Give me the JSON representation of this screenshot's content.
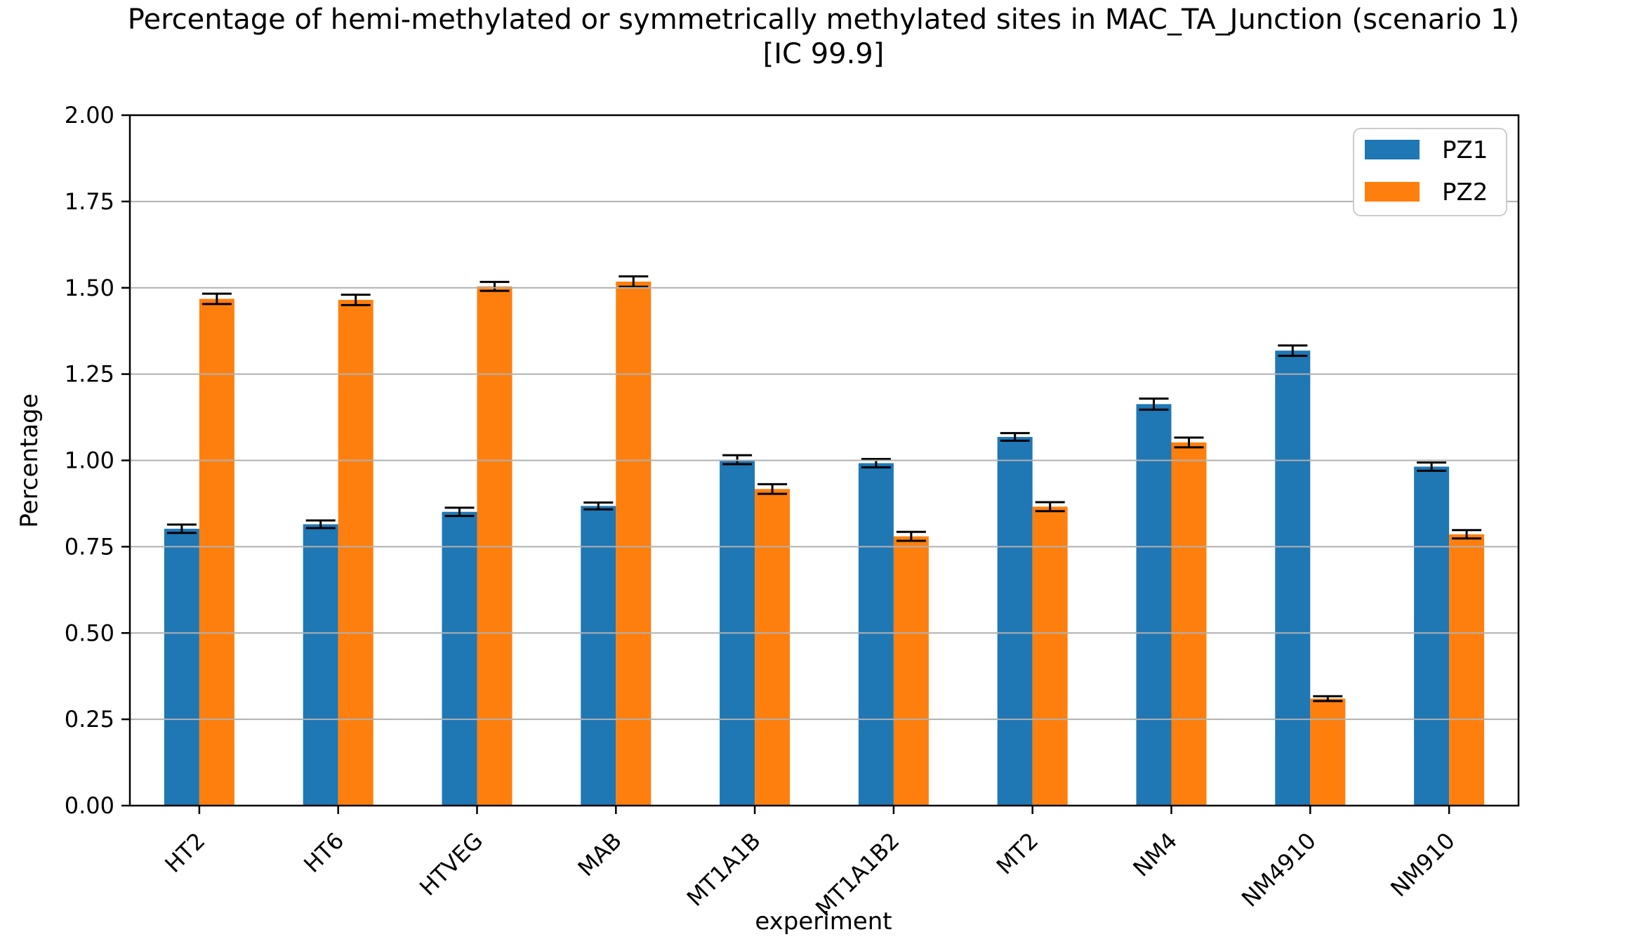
{
  "title": {
    "line1": "Percentage of hemi-methylated or symmetrically methylated sites in MAC_TA_Junction (scenario 1)",
    "line2": "[IC 99.9]"
  },
  "chart_data": {
    "type": "bar",
    "title": "Percentage of hemi-methylated or symmetrically methylated sites in MAC_TA_Junction (scenario 1) [IC 99.9]",
    "xlabel": "experiment",
    "ylabel": "Percentage",
    "ylim": [
      0.0,
      2.0
    ],
    "ytick_labels": [
      "0.00",
      "0.25",
      "0.50",
      "0.75",
      "1.00",
      "1.25",
      "1.50",
      "1.75",
      "2.00"
    ],
    "yticks": [
      0.0,
      0.25,
      0.5,
      0.75,
      1.0,
      1.25,
      1.5,
      1.75,
      2.0
    ],
    "grid": "horizontal",
    "grid_color": "#b0b0b0",
    "error_bar_color": "#000000",
    "legend_position": "upper right",
    "categories": [
      "HT2",
      "HT6",
      "HTVEG",
      "MAB",
      "MT1A1B",
      "MT1A1B2",
      "MT2",
      "NM4",
      "NM4910",
      "NM910"
    ],
    "series": [
      {
        "name": "PZ1",
        "color": "#1f77b4",
        "values": [
          0.802,
          0.815,
          0.851,
          0.868,
          1.002,
          0.992,
          1.068,
          1.163,
          1.318,
          0.982
        ],
        "errors": [
          0.012,
          0.011,
          0.012,
          0.01,
          0.013,
          0.012,
          0.011,
          0.016,
          0.015,
          0.012
        ]
      },
      {
        "name": "PZ2",
        "color": "#ff7f0e",
        "values": [
          1.468,
          1.465,
          1.504,
          1.518,
          0.917,
          0.78,
          0.866,
          1.052,
          0.31,
          0.786
        ],
        "errors": [
          0.015,
          0.015,
          0.013,
          0.015,
          0.014,
          0.013,
          0.013,
          0.014,
          0.007,
          0.012
        ]
      }
    ]
  }
}
